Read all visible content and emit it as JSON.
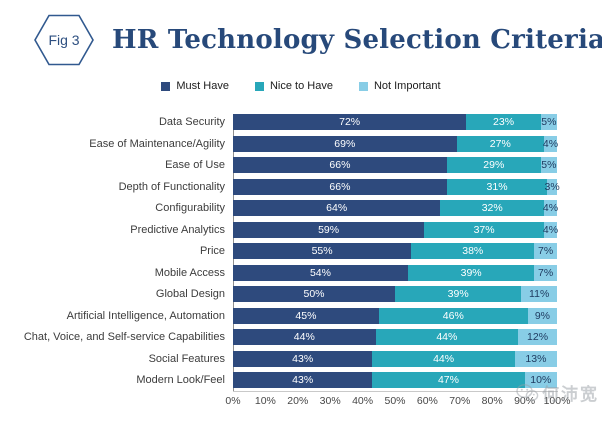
{
  "figure": {
    "badge": "Fig 3",
    "title": "HR Technology Selection Criteria"
  },
  "colors": {
    "must_have": "#2e4a7d",
    "nice_to_have": "#28a7b9",
    "not_important": "#88cde6",
    "title_navy": "#27497a",
    "badge_outline": "#31598f"
  },
  "chart_data": {
    "type": "bar",
    "stacked": true,
    "orientation": "horizontal",
    "title": "HR Technology Selection Criteria",
    "xlabel": "",
    "ylabel": "",
    "xlim": [
      0,
      100
    ],
    "legend_position": "top",
    "grid": false,
    "value_suffix": "%",
    "categories": [
      "Data Security",
      "Ease of Maintenance/Agility",
      "Ease of Use",
      "Depth of Functionality",
      "Configurability",
      "Predictive Analytics",
      "Price",
      "Mobile Access",
      "Global Design",
      "Artificial Intelligence, Automation",
      "Chat, Voice, and Self-service Capabilities",
      "Social Features",
      "Modern Look/Feel"
    ],
    "series": [
      {
        "name": "Must Have",
        "color": "#2e4a7d",
        "text_color": "#ffffff",
        "values": [
          72,
          69,
          66,
          66,
          64,
          59,
          55,
          54,
          50,
          45,
          44,
          43,
          43
        ]
      },
      {
        "name": "Nice to Have",
        "color": "#28a7b9",
        "text_color": "#ffffff",
        "values": [
          23,
          27,
          29,
          31,
          32,
          37,
          38,
          39,
          39,
          46,
          44,
          44,
          47
        ]
      },
      {
        "name": "Not Important",
        "color": "#88cde6",
        "text_color": "#1e3a5f",
        "values": [
          5,
          4,
          5,
          3,
          4,
          4,
          7,
          7,
          11,
          9,
          12,
          13,
          10
        ]
      }
    ],
    "x_ticks": [
      "0%",
      "10%",
      "20%",
      "30%",
      "40%",
      "50%",
      "60%",
      "70%",
      "80%",
      "90%",
      "100%"
    ]
  },
  "watermark": {
    "text": "何沛宽"
  }
}
